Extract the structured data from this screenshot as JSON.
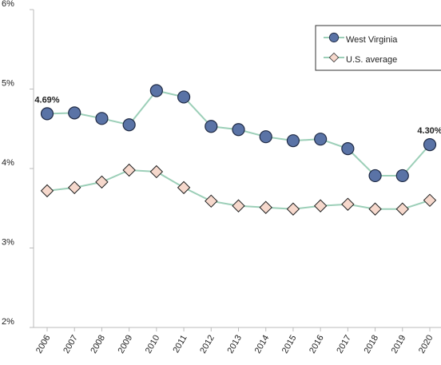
{
  "chart_data": {
    "type": "line",
    "categories": [
      "2006",
      "2007",
      "2008",
      "2009",
      "2010",
      "2011",
      "2012",
      "2013",
      "2014",
      "2015",
      "2016",
      "2017",
      "2018",
      "2019",
      "2020"
    ],
    "series": [
      {
        "name": "West Virginia",
        "color": "#5a73a6",
        "marker": "circle",
        "values": [
          4.69,
          4.7,
          4.63,
          4.55,
          4.98,
          4.9,
          4.53,
          4.49,
          4.4,
          4.35,
          4.37,
          4.25,
          3.91,
          3.91,
          4.3
        ],
        "value_labels": [
          "4.69%",
          null,
          null,
          null,
          null,
          null,
          null,
          null,
          null,
          null,
          null,
          null,
          null,
          null,
          "4.30%"
        ]
      },
      {
        "name": "U.S. average",
        "color": "#f6d8cc",
        "marker": "diamond",
        "values": [
          3.72,
          3.76,
          3.83,
          3.98,
          3.96,
          3.76,
          3.59,
          3.53,
          3.51,
          3.49,
          3.53,
          3.55,
          3.49,
          3.49,
          3.6
        ]
      }
    ],
    "line_color": "#9ccfb8",
    "ylim": [
      2,
      6
    ],
    "yticks": [
      {
        "value": 2,
        "label": "2%"
      },
      {
        "value": 3,
        "label": "3%"
      },
      {
        "value": 4,
        "label": "4%"
      },
      {
        "value": 5,
        "label": "5%"
      },
      {
        "value": 6,
        "label": "6%"
      }
    ],
    "grid": false,
    "legend": "top-right"
  }
}
